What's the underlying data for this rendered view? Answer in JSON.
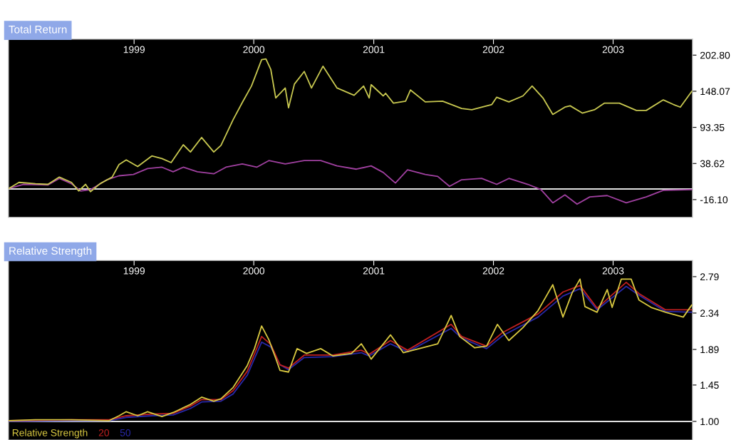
{
  "chart_data": [
    {
      "type": "line",
      "title": "Total Return",
      "xlim": [
        "1997-12-14",
        "2003-08-31"
      ],
      "ylim": [
        -43,
        227
      ],
      "xticks": [
        {
          "value": "1999",
          "label": "1999"
        },
        {
          "value": "2000",
          "label": "2000"
        },
        {
          "value": "2001",
          "label": "2001"
        },
        {
          "value": "2002",
          "label": "2002"
        },
        {
          "value": "2003",
          "label": "2003"
        }
      ],
      "yticks": [
        {
          "value": 202.8,
          "label": "202.80"
        },
        148.07,
        93.35,
        38.62,
        {
          "value": -16.1,
          "label": "-16.10"
        }
      ],
      "grid": false,
      "ref_lines": [
        {
          "axis": "y",
          "value": 0,
          "color": "#e0e0e0"
        }
      ],
      "series": [
        {
          "color": "#c8c850",
          "x": [
            "1997-12-16",
            "1998-01-15",
            "1998-03-06",
            "1998-04-13",
            "1998-05-18",
            "1998-06-24",
            "1998-07-16",
            "1998-08-06",
            "1998-08-21",
            "1998-09-19",
            "1998-10-26",
            "1998-11-16",
            "1998-12-08",
            "1999-01-12",
            "1999-02-24",
            "1999-03-27",
            "1999-04-24",
            "1999-05-31",
            "1999-06-22",
            "1999-07-26",
            "1999-09-01",
            "1999-09-23",
            "1999-10-30",
            "1999-11-27",
            "1999-12-25",
            "2000-01-25",
            "2000-02-07",
            "2000-02-22",
            "2000-03-08",
            "2000-04-06",
            "2000-04-16",
            "2000-05-04",
            "2000-06-03",
            "2000-06-25",
            "2000-07-30",
            "2000-09-11",
            "2000-11-02",
            "2000-12-01",
            "2000-12-18",
            "2000-12-24",
            "2001-01-30",
            "2001-02-06",
            "2001-03-02",
            "2001-04-08",
            "2001-04-23",
            "2001-06-07",
            "2001-07-30",
            "2001-09-26",
            "2001-10-27",
            "2001-12-27",
            "2002-01-11",
            "2002-02-17",
            "2002-04-01",
            "2002-04-29",
            "2002-06-01",
            "2002-07-01",
            "2002-08-07",
            "2002-08-23",
            "2002-09-29",
            "2002-11-05",
            "2002-12-05",
            "2003-01-20",
            "2003-03-13",
            "2003-04-12",
            "2003-06-03",
            "2003-07-04",
            "2003-07-25",
            "2003-08-29"
          ],
          "values": [
            1,
            10,
            8,
            7,
            18,
            10,
            -3,
            7,
            -4,
            8,
            18,
            37,
            44,
            34,
            50,
            46,
            40,
            67,
            56,
            78,
            56,
            66,
            105,
            131,
            156,
            196,
            197,
            181,
            138,
            153,
            123,
            159,
            178,
            153,
            186,
            153,
            142,
            156,
            138,
            158,
            141,
            145,
            130,
            133,
            150,
            132,
            133,
            122,
            120,
            128,
            139,
            132,
            141,
            156,
            138,
            113,
            124,
            126,
            115,
            120,
            130,
            130,
            119,
            119,
            135,
            128,
            124,
            148
          ]
        },
        {
          "color": "#a040a0",
          "x": [
            "1997-12-16",
            "1998-01-28",
            "1998-04-13",
            "1998-05-18",
            "1998-06-24",
            "1998-07-22",
            "1998-08-21",
            "1998-10-10",
            "1998-11-16",
            "1998-12-30",
            "1999-02-11",
            "1999-03-27",
            "1999-04-30",
            "1999-05-31",
            "1999-07-13",
            "1999-09-01",
            "1999-10-08",
            "1999-11-27",
            "2000-01-10",
            "2000-02-16",
            "2000-04-06",
            "2000-06-03",
            "2000-07-23",
            "2000-09-11",
            "2000-11-09",
            "2000-12-24",
            "2001-01-30",
            "2001-03-08",
            "2001-04-14",
            "2001-06-07",
            "2001-07-15",
            "2001-08-20",
            "2001-09-26",
            "2001-11-26",
            "2002-01-11",
            "2002-02-17",
            "2002-04-16",
            "2002-05-26",
            "2002-07-01",
            "2002-08-07",
            "2002-09-13",
            "2002-10-22",
            "2002-12-14",
            "2003-02-10",
            "2003-04-12",
            "2003-06-03",
            "2003-08-29"
          ],
          "values": [
            1,
            7,
            6,
            16,
            8,
            -3,
            -1,
            14,
            20,
            22,
            31,
            33,
            26,
            33,
            26,
            23,
            33,
            38,
            33,
            43,
            38,
            43,
            43,
            35,
            30,
            35,
            25,
            9,
            29,
            22,
            19,
            4,
            14,
            16,
            7,
            16,
            7,
            -1,
            -21,
            -9,
            -23,
            -12,
            -10,
            -21,
            -12,
            -2,
            -1
          ]
        }
      ]
    },
    {
      "type": "line",
      "title": "Relative Strength",
      "xlim": [
        "1997-12-14",
        "2003-08-31"
      ],
      "ylim": [
        0.77,
        2.99
      ],
      "xticks": [
        {
          "value": "1999",
          "label": "1999"
        },
        {
          "value": "2000",
          "label": "2000"
        },
        {
          "value": "2001",
          "label": "2001"
        },
        {
          "value": "2002",
          "label": "2002"
        },
        {
          "value": "2003",
          "label": "2003"
        }
      ],
      "yticks": [
        2.79,
        2.34,
        1.89,
        1.45,
        {
          "value": 1.0,
          "label": "1.00"
        }
      ],
      "grid": false,
      "legend": "bottom left",
      "ref_lines": [
        {
          "axis": "y",
          "value": 1.0,
          "color": "#e0e0e0"
        }
      ],
      "series": [
        {
          "name": "Relative Strength",
          "color": "#d8c840",
          "x": [
            "1997-12-16",
            "1998-03-06",
            "1998-06-24",
            "1998-10-17",
            "1998-11-16",
            "1998-12-08",
            "1999-01-12",
            "1999-02-11",
            "1999-03-27",
            "1999-04-30",
            "1999-06-22",
            "1999-07-26",
            "1999-09-01",
            "1999-09-23",
            "1999-10-30",
            "1999-12-12",
            "2000-01-03",
            "2000-01-25",
            "2000-02-16",
            "2000-03-08",
            "2000-03-21",
            "2000-04-16",
            "2000-05-12",
            "2000-06-10",
            "2000-07-23",
            "2000-08-29",
            "2000-10-25",
            "2000-11-24",
            "2000-12-18",
            "2000-12-24",
            "2001-02-21",
            "2001-04-01",
            "2001-05-30",
            "2001-07-15",
            "2001-08-25",
            "2001-09-20",
            "2001-11-05",
            "2001-12-11",
            "2002-01-13",
            "2002-02-17",
            "2002-04-01",
            "2002-05-17",
            "2002-07-01",
            "2002-08-01",
            "2002-08-29",
            "2002-09-22",
            "2002-10-07",
            "2002-11-13",
            "2002-12-14",
            "2002-12-29",
            "2003-01-26",
            "2003-02-25",
            "2003-03-21",
            "2003-04-27",
            "2003-06-10",
            "2003-08-03",
            "2003-08-29"
          ],
          "values": [
            1.01,
            1.02,
            1.02,
            1.01,
            1.07,
            1.12,
            1.07,
            1.12,
            1.06,
            1.11,
            1.21,
            1.3,
            1.25,
            1.28,
            1.42,
            1.69,
            1.9,
            2.18,
            2.01,
            1.78,
            1.63,
            1.61,
            1.9,
            1.84,
            1.9,
            1.81,
            1.84,
            1.96,
            1.81,
            1.77,
            2.07,
            1.85,
            1.91,
            1.96,
            2.31,
            2.05,
            1.91,
            1.93,
            2.2,
            2.0,
            2.16,
            2.37,
            2.69,
            2.29,
            2.59,
            2.76,
            2.42,
            2.35,
            2.63,
            2.41,
            2.76,
            2.76,
            2.5,
            2.41,
            2.35,
            2.29,
            2.44
          ]
        },
        {
          "name": "20",
          "color": "#c02020",
          "x": [
            "1997-12-16",
            "1998-06-24",
            "1998-10-17",
            "1998-12-08",
            "1999-02-24",
            "1999-04-30",
            "1999-06-22",
            "1999-07-26",
            "1999-09-23",
            "1999-10-30",
            "1999-12-12",
            "2000-01-25",
            "2000-02-22",
            "2000-03-21",
            "2000-04-16",
            "2000-06-03",
            "2000-08-29",
            "2000-11-24",
            "2000-12-18",
            "2001-02-21",
            "2001-04-14",
            "2001-08-25",
            "2001-09-26",
            "2001-12-11",
            "2002-01-29",
            "2002-05-17",
            "2002-08-01",
            "2002-09-22",
            "2002-11-13",
            "2003-02-10",
            "2003-03-21",
            "2003-06-10",
            "2003-08-29"
          ],
          "values": [
            1.01,
            1.02,
            1.02,
            1.07,
            1.09,
            1.1,
            1.19,
            1.27,
            1.27,
            1.38,
            1.62,
            2.05,
            1.95,
            1.7,
            1.66,
            1.82,
            1.82,
            1.88,
            1.83,
            2.0,
            1.88,
            2.2,
            2.05,
            1.93,
            2.1,
            2.33,
            2.6,
            2.68,
            2.4,
            2.72,
            2.58,
            2.38,
            2.38
          ]
        },
        {
          "name": "50",
          "color": "#2828a8",
          "x": [
            "1997-12-16",
            "1998-06-24",
            "1998-10-17",
            "1998-12-08",
            "1999-02-24",
            "1999-04-30",
            "1999-06-22",
            "1999-07-26",
            "1999-09-23",
            "1999-10-30",
            "1999-12-12",
            "2000-01-25",
            "2000-02-22",
            "2000-03-21",
            "2000-04-16",
            "2000-06-03",
            "2000-08-29",
            "2000-11-24",
            "2000-12-18",
            "2001-02-21",
            "2001-04-14",
            "2001-08-25",
            "2001-09-26",
            "2001-12-11",
            "2002-01-29",
            "2002-05-17",
            "2002-08-01",
            "2002-09-22",
            "2002-11-13",
            "2003-02-10",
            "2003-03-21",
            "2003-06-10",
            "2003-08-29"
          ],
          "values": [
            1.0,
            1.01,
            1.01,
            1.05,
            1.07,
            1.08,
            1.16,
            1.24,
            1.25,
            1.34,
            1.57,
            1.98,
            1.92,
            1.7,
            1.64,
            1.79,
            1.8,
            1.85,
            1.81,
            1.96,
            1.86,
            2.15,
            2.03,
            1.9,
            2.06,
            2.29,
            2.55,
            2.64,
            2.38,
            2.67,
            2.56,
            2.36,
            2.35
          ]
        }
      ]
    }
  ]
}
